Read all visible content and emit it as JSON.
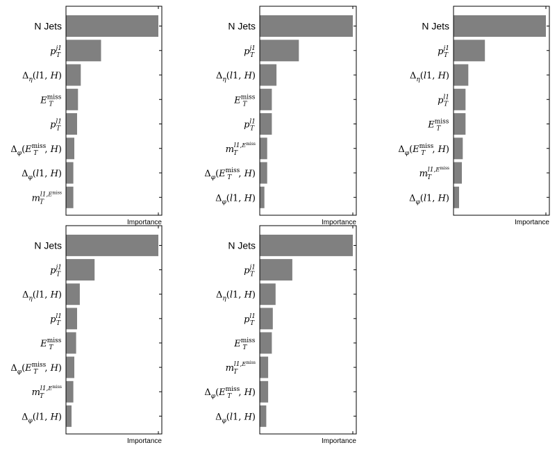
{
  "chart_data": [
    {
      "type": "bar",
      "orientation": "horizontal",
      "xlabel": "Importance",
      "categories": [
        "N Jets",
        "pT j1",
        "Δη(l1,H)",
        "ET miss",
        "pT l1",
        "Δφ(ET miss,H)",
        "Δφ(l1,H)",
        "mT l1,ET miss"
      ],
      "values": [
        1.0,
        0.38,
        0.16,
        0.13,
        0.12,
        0.09,
        0.08,
        0.08
      ],
      "bar_color": "#808080"
    },
    {
      "type": "bar",
      "orientation": "horizontal",
      "xlabel": "Importance",
      "categories": [
        "N Jets",
        "pT j1",
        "Δη(l1,H)",
        "ET miss",
        "pT l1",
        "mT l1,ET miss",
        "Δφ(ET miss,H)",
        "Δφ(l1,H)"
      ],
      "values": [
        1.0,
        0.42,
        0.18,
        0.13,
        0.13,
        0.08,
        0.08,
        0.05
      ],
      "bar_color": "#808080"
    },
    {
      "type": "bar",
      "orientation": "horizontal",
      "xlabel": "Importance",
      "categories": [
        "N Jets",
        "pT j1",
        "Δη(l1,H)",
        "pT l1",
        "ET miss",
        "Δφ(ET miss,H)",
        "mT l1,ET miss",
        "Δφ(l1,H)"
      ],
      "values": [
        1.0,
        0.34,
        0.16,
        0.13,
        0.13,
        0.1,
        0.09,
        0.06
      ],
      "bar_color": "#808080"
    },
    {
      "type": "bar",
      "orientation": "horizontal",
      "xlabel": "Importance",
      "categories": [
        "N Jets",
        "pT j1",
        "Δη(l1,H)",
        "pT l1",
        "ET miss",
        "Δφ(ET miss,H)",
        "mT l1,ET miss",
        "Δφ(l1,H)"
      ],
      "values": [
        1.0,
        0.31,
        0.15,
        0.12,
        0.11,
        0.09,
        0.08,
        0.06
      ],
      "bar_color": "#808080"
    },
    {
      "type": "bar",
      "orientation": "horizontal",
      "xlabel": "Importance",
      "categories": [
        "N Jets",
        "pT j1",
        "Δη(l1,H)",
        "pT l1",
        "ET miss",
        "mT l1,ET miss",
        "Δφ(ET miss,H)",
        "Δφ(l1,H)"
      ],
      "values": [
        1.0,
        0.35,
        0.17,
        0.14,
        0.13,
        0.09,
        0.09,
        0.07
      ],
      "bar_color": "#808080"
    }
  ]
}
